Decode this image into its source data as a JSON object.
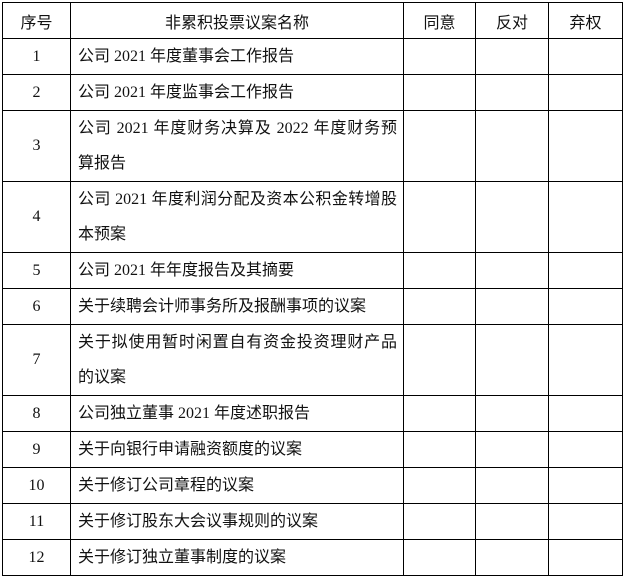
{
  "table": {
    "headers": [
      "序号",
      "非累积投票议案名称",
      "同意",
      "反对",
      "弃权"
    ],
    "rows": [
      {
        "no": "1",
        "name": "公司 2021 年度董事会工作报告",
        "lines": 1
      },
      {
        "no": "2",
        "name": "公司 2021 年度监事会工作报告",
        "lines": 1
      },
      {
        "no": "3",
        "name": "公司 2021 年度财务决算及 2022 年度财务预算报告",
        "lines": 2
      },
      {
        "no": "4",
        "name": "公司 2021 年度利润分配及资本公积金转增股本预案",
        "lines": 2
      },
      {
        "no": "5",
        "name": "公司 2021 年年度报告及其摘要",
        "lines": 1
      },
      {
        "no": "6",
        "name": "关于续聘会计师事务所及报酬事项的议案",
        "lines": 1
      },
      {
        "no": "7",
        "name": "关于拟使用暂时闲置自有资金投资理财产品的议案",
        "lines": 2
      },
      {
        "no": "8",
        "name": "公司独立董事 2021 年度述职报告",
        "lines": 1
      },
      {
        "no": "9",
        "name": "关于向银行申请融资额度的议案",
        "lines": 1
      },
      {
        "no": "10",
        "name": "关于修订公司章程的议案",
        "lines": 1
      },
      {
        "no": "11",
        "name": "关于修订股东大会议事规则的议案",
        "lines": 1
      },
      {
        "no": "12",
        "name": "关于修订独立董事制度的议案",
        "lines": 1
      }
    ]
  }
}
